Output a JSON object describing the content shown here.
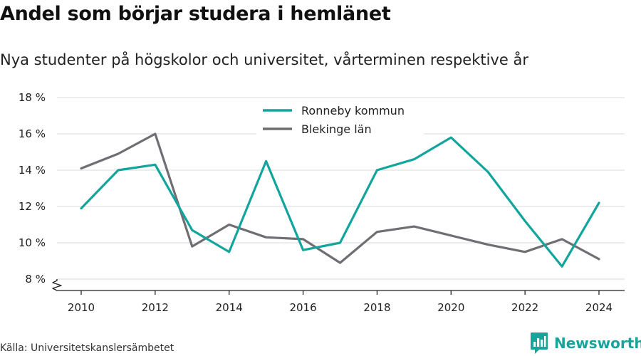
{
  "title": "Andel som börjar studera i hemlänet",
  "subtitle": "Nya studenter på högskolor och universitet, vårterminen respektive år",
  "source": "Källa: Universitetskanslersämbetet",
  "brand": {
    "name": "Newsworthy",
    "icon": "newsworthy-logo-icon",
    "color": "#1aa39a"
  },
  "chart_data": {
    "type": "line",
    "x": [
      2010,
      2011,
      2012,
      2013,
      2014,
      2015,
      2016,
      2017,
      2018,
      2019,
      2020,
      2021,
      2022,
      2023,
      2024
    ],
    "x_ticks": [
      2010,
      2012,
      2014,
      2016,
      2018,
      2020,
      2022,
      2024
    ],
    "y_ticks": [
      8,
      10,
      12,
      14,
      16,
      18
    ],
    "y_tick_labels": [
      "8 %",
      "10 %",
      "12 %",
      "14 %",
      "16 %",
      "18 %"
    ],
    "ylim": [
      8,
      18
    ],
    "y_axis_break": true,
    "grid": "horizontal",
    "legend_position": "top-center",
    "series": [
      {
        "name": "Ronneby kommun",
        "color": "#12a59c",
        "values": [
          11.9,
          14.0,
          14.3,
          10.7,
          9.5,
          14.5,
          9.6,
          10.0,
          14.0,
          14.6,
          15.8,
          13.9,
          11.2,
          8.7,
          12.2
        ]
      },
      {
        "name": "Blekinge län",
        "color": "#6e6e73",
        "values": [
          14.1,
          14.9,
          16.0,
          9.8,
          11.0,
          10.3,
          10.2,
          8.9,
          10.6,
          10.9,
          10.4,
          9.9,
          9.5,
          10.2,
          9.1
        ]
      }
    ]
  }
}
